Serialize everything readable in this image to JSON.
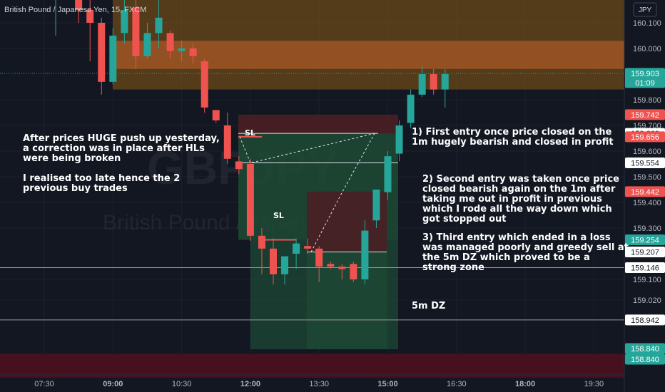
{
  "header": {
    "title": "British Pound / Japanese Yen, 15, FXCM",
    "currency_button": "JPY",
    "watermark_symbol": "GBPJPY",
    "watermark_name": "British Pound / Japanese Yen"
  },
  "colors": {
    "background": "#131722",
    "up": "#26a69a",
    "down": "#ef5350",
    "text": "#d1d4dc",
    "axis_text": "#b2b5be",
    "supply_zone": "#8a5a14",
    "supply_line": "#c6622b",
    "demand_zone": "#4a1020",
    "long_profit": "#1e4a35",
    "long_stop": "#4a1f24"
  },
  "chart_data": {
    "type": "candlestick",
    "title": "British Pound / Japanese Yen, 15, FXCM",
    "ylim": [
      158.72,
      160.28
    ],
    "y_ticks": [
      160.1,
      160.0,
      159.8,
      159.7,
      159.6,
      159.5,
      159.4,
      159.3,
      159.1,
      159.02
    ],
    "x_ticks": [
      "07:30",
      "09:00",
      "10:30",
      "12:00",
      "13:30",
      "15:00",
      "16:30",
      "18:00",
      "19:30"
    ],
    "candles": [
      {
        "t": "07:45",
        "o": 160.2,
        "h": 160.3,
        "l": 160.05,
        "c": 160.25
      },
      {
        "t": "08:00",
        "o": 160.25,
        "h": 160.3,
        "l": 160.2,
        "c": 160.27
      },
      {
        "t": "08:15",
        "o": 160.27,
        "h": 160.3,
        "l": 160.1,
        "c": 160.15
      },
      {
        "t": "08:30",
        "o": 160.15,
        "h": 160.24,
        "l": 159.95,
        "c": 160.1
      },
      {
        "t": "08:45",
        "o": 160.1,
        "h": 160.12,
        "l": 159.82,
        "c": 159.87
      },
      {
        "t": "09:00",
        "o": 159.87,
        "h": 160.08,
        "l": 159.86,
        "c": 160.05
      },
      {
        "t": "09:15",
        "o": 160.06,
        "h": 160.2,
        "l": 160.02,
        "c": 160.15
      },
      {
        "t": "09:30",
        "o": 160.16,
        "h": 160.22,
        "l": 159.92,
        "c": 159.97
      },
      {
        "t": "09:45",
        "o": 159.97,
        "h": 160.1,
        "l": 159.96,
        "c": 160.06
      },
      {
        "t": "10:00",
        "o": 160.06,
        "h": 160.24,
        "l": 160.0,
        "c": 160.12
      },
      {
        "t": "10:15",
        "o": 160.06,
        "h": 160.07,
        "l": 159.96,
        "c": 159.99
      },
      {
        "t": "10:30",
        "o": 159.99,
        "h": 160.03,
        "l": 159.95,
        "c": 160.0
      },
      {
        "t": "10:45",
        "o": 160.0,
        "h": 160.02,
        "l": 159.94,
        "c": 159.97
      },
      {
        "t": "11:00",
        "o": 159.95,
        "h": 159.96,
        "l": 159.75,
        "c": 159.77
      },
      {
        "t": "11:15",
        "o": 159.76,
        "h": 159.76,
        "l": 159.71,
        "c": 159.72
      },
      {
        "t": "11:30",
        "o": 159.7,
        "h": 159.75,
        "l": 159.55,
        "c": 159.57
      },
      {
        "t": "11:45",
        "o": 159.56,
        "h": 159.58,
        "l": 159.51,
        "c": 159.53
      },
      {
        "t": "12:00",
        "o": 159.55,
        "h": 159.57,
        "l": 159.25,
        "c": 159.27
      },
      {
        "t": "12:15",
        "o": 159.27,
        "h": 159.3,
        "l": 159.12,
        "c": 159.22
      },
      {
        "t": "12:30",
        "o": 159.22,
        "h": 159.26,
        "l": 159.08,
        "c": 159.12
      },
      {
        "t": "12:45",
        "o": 159.12,
        "h": 159.18,
        "l": 159.08,
        "c": 159.19
      },
      {
        "t": "13:00",
        "o": 159.2,
        "h": 159.26,
        "l": 159.14,
        "c": 159.24
      },
      {
        "t": "13:15",
        "o": 159.23,
        "h": 159.26,
        "l": 159.2,
        "c": 159.22
      },
      {
        "t": "13:30",
        "o": 159.22,
        "h": 159.23,
        "l": 159.09,
        "c": 159.15
      },
      {
        "t": "13:45",
        "o": 159.16,
        "h": 159.17,
        "l": 159.14,
        "c": 159.15
      },
      {
        "t": "14:00",
        "o": 159.15,
        "h": 159.16,
        "l": 159.1,
        "c": 159.14
      },
      {
        "t": "14:15",
        "o": 159.16,
        "h": 159.17,
        "l": 159.09,
        "c": 159.1
      },
      {
        "t": "14:30",
        "o": 159.1,
        "h": 159.33,
        "l": 159.08,
        "c": 159.29
      },
      {
        "t": "14:45",
        "o": 159.33,
        "h": 159.45,
        "l": 159.3,
        "c": 159.45
      },
      {
        "t": "15:00",
        "o": 159.44,
        "h": 159.6,
        "l": 159.41,
        "c": 159.58
      },
      {
        "t": "15:15",
        "o": 159.59,
        "h": 159.72,
        "l": 159.56,
        "c": 159.7
      },
      {
        "t": "15:30",
        "o": 159.71,
        "h": 159.84,
        "l": 159.69,
        "c": 159.82
      },
      {
        "t": "15:45",
        "o": 159.82,
        "h": 159.93,
        "l": 159.81,
        "c": 159.9
      },
      {
        "t": "16:00",
        "o": 159.9,
        "h": 159.92,
        "l": 159.82,
        "c": 159.84
      },
      {
        "t": "16:15",
        "o": 159.84,
        "h": 159.92,
        "l": 159.77,
        "c": 159.9
      }
    ],
    "zones": [
      {
        "name": "supply",
        "from": 159.84,
        "to": 160.3
      },
      {
        "name": "supply-proximal",
        "from": 159.92,
        "to": 160.03
      },
      {
        "name": "5m DZ",
        "from": 158.72,
        "to": 158.81
      }
    ],
    "horizontal_lines": [
      159.146,
      158.942
    ],
    "price_labels": [
      {
        "text": "159.903",
        "sub": "01:09",
        "kind": "up"
      },
      {
        "text": "159.742",
        "kind": "down"
      },
      {
        "text": "159.669",
        "kind": "neutral"
      },
      {
        "text": "159.656",
        "kind": "down"
      },
      {
        "text": "159.554",
        "kind": "neutral"
      },
      {
        "text": "159.442",
        "kind": "down"
      },
      {
        "text": "159.254",
        "kind": "up"
      },
      {
        "text": "159.207",
        "kind": "neutral"
      },
      {
        "text": "159.146",
        "kind": "neutral"
      },
      {
        "text": "158.942",
        "kind": "neutral"
      },
      {
        "text": "158.840",
        "kind": "up"
      },
      {
        "text": "158.840",
        "kind": "up"
      }
    ],
    "trade_labels": [
      "SL",
      "SL"
    ]
  },
  "annotations": {
    "note_left": "After prices HUGE push up yesterday,\na correction was in place after HLs\nwere being broken\n\nI realised too late hence the 2\nprevious buy trades",
    "note_1": "1) First entry once price closed on the\n1m hugely bearish and closed in profit",
    "note_2": "2) Second entry was taken once price\nclosed bearish again on the 1m after\ntaking me out in profit in previous\nwhich I rode all the way down which\ngot stopped out",
    "note_3": "3) Third entry which ended in a loss\nwas managed poorly and greedy sell at\nthe 5m DZ which proved to be a\nstrong zone",
    "note_dz": "5m DZ"
  }
}
